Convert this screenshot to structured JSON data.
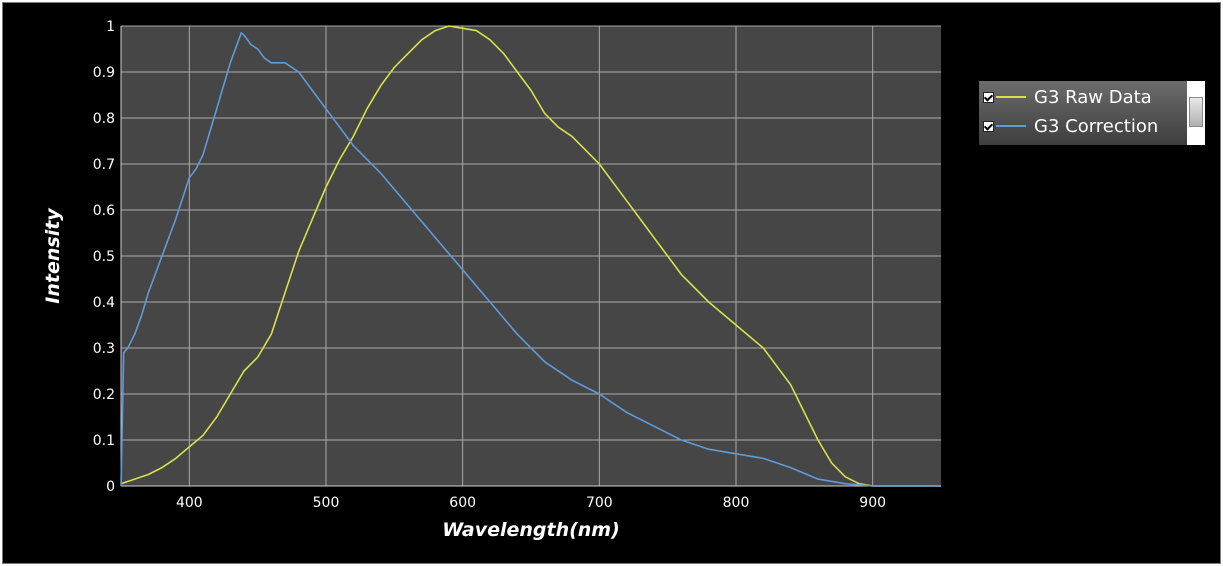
{
  "colors": {
    "background": "#000000",
    "plot_area": "#464646",
    "grid": "#a9a9a9",
    "raw_data": "#d6e04a",
    "correction": "#5f9ad9"
  },
  "legend": {
    "items": [
      {
        "label": "G3 Raw Data",
        "checked": true
      },
      {
        "label": "G3 Correction",
        "checked": true
      }
    ]
  },
  "chart_data": {
    "type": "line",
    "xlabel": "Wavelength(nm)",
    "ylabel": "Intensity",
    "xlim": [
      350,
      950
    ],
    "ylim": [
      0,
      1
    ],
    "xticks": [
      400,
      500,
      600,
      700,
      800,
      900
    ],
    "xtick_labels": [
      "400",
      "500",
      "600",
      "700",
      "800",
      "900"
    ],
    "yticks": [
      0,
      0.1,
      0.2,
      0.3,
      0.4,
      0.5,
      0.6,
      0.7,
      0.8,
      0.9,
      1
    ],
    "ytick_labels": [
      "0",
      "0.1",
      "0.2",
      "0.3",
      "0.4",
      "0.5",
      "0.6",
      "0.7",
      "0.8",
      "0.9",
      "1"
    ],
    "grid": true,
    "legend_position": "right",
    "series": [
      {
        "name": "G3 Raw Data",
        "x": [
          350,
          360,
          370,
          380,
          390,
          400,
          410,
          420,
          430,
          440,
          450,
          460,
          470,
          480,
          490,
          500,
          510,
          520,
          530,
          540,
          550,
          560,
          570,
          580,
          590,
          600,
          610,
          620,
          630,
          640,
          650,
          660,
          670,
          680,
          690,
          700,
          720,
          740,
          760,
          780,
          800,
          820,
          840,
          850,
          860,
          870,
          880,
          890,
          900,
          950
        ],
        "y": [
          0.005,
          0.015,
          0.025,
          0.04,
          0.06,
          0.085,
          0.11,
          0.15,
          0.2,
          0.25,
          0.28,
          0.33,
          0.42,
          0.51,
          0.58,
          0.65,
          0.71,
          0.76,
          0.82,
          0.87,
          0.91,
          0.94,
          0.97,
          0.99,
          1.0,
          0.995,
          0.99,
          0.97,
          0.94,
          0.9,
          0.86,
          0.81,
          0.78,
          0.76,
          0.73,
          0.7,
          0.62,
          0.54,
          0.46,
          0.4,
          0.35,
          0.3,
          0.22,
          0.16,
          0.1,
          0.05,
          0.02,
          0.005,
          0.0,
          0.0
        ]
      },
      {
        "name": "G3 Correction",
        "x": [
          350,
          352,
          355,
          360,
          365,
          370,
          380,
          390,
          400,
          405,
          410,
          420,
          430,
          438,
          440,
          445,
          450,
          455,
          460,
          470,
          480,
          490,
          500,
          510,
          520,
          540,
          560,
          580,
          600,
          620,
          640,
          660,
          680,
          700,
          720,
          740,
          760,
          780,
          800,
          820,
          840,
          860,
          880,
          900,
          950
        ],
        "y": [
          0.0,
          0.29,
          0.3,
          0.33,
          0.37,
          0.42,
          0.5,
          0.58,
          0.67,
          0.69,
          0.72,
          0.82,
          0.92,
          0.985,
          0.98,
          0.96,
          0.95,
          0.93,
          0.92,
          0.92,
          0.9,
          0.86,
          0.82,
          0.78,
          0.74,
          0.68,
          0.61,
          0.54,
          0.47,
          0.4,
          0.33,
          0.27,
          0.23,
          0.2,
          0.16,
          0.13,
          0.1,
          0.08,
          0.07,
          0.06,
          0.04,
          0.015,
          0.005,
          0.0,
          0.0
        ]
      }
    ]
  }
}
